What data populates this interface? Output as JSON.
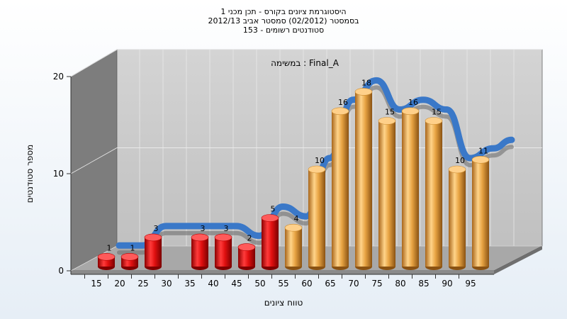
{
  "chart_data": {
    "type": "bar",
    "title_lines": [
      "היסטוגרמת ציונים בקורס - תכן מכני 1",
      "בסמסטר  (02/2012)  סמסטר אביב 2012/13",
      "סטודנטים רשומים - 153"
    ],
    "subtitle": "במשימה : Final_A",
    "xlabel": "טווח ציונים",
    "ylabel": "מספר סטודנטים",
    "x_ticks": [
      "15",
      "20",
      "25",
      "30",
      "35",
      "40",
      "45",
      "50",
      "55",
      "60",
      "65",
      "70",
      "75",
      "80",
      "85",
      "90",
      "95"
    ],
    "y_ticks": [
      "0",
      "10",
      "20"
    ],
    "ylim": [
      0,
      20
    ],
    "categories": [
      "15",
      "20",
      "25",
      "35",
      "40",
      "45",
      "50",
      "55",
      "60",
      "65",
      "70",
      "75",
      "80",
      "85",
      "90",
      "95"
    ],
    "values": [
      1,
      1,
      3,
      3,
      3,
      2,
      5,
      4,
      10,
      16,
      18,
      15,
      16,
      15,
      10,
      11
    ],
    "bar_colors": [
      "#e0141b",
      "#e0141b",
      "#e0141b",
      "#e0141b",
      "#e0141b",
      "#e0141b",
      "#e0141b",
      "#e8a443",
      "#e8a443",
      "#e8a443",
      "#e8a443",
      "#e8a443",
      "#e8a443",
      "#e8a443",
      "#e8a443",
      "#e8a443"
    ],
    "trend_color": "#3a78c8",
    "trend_shadow_color": "#707070",
    "legend": "none",
    "grid": true
  }
}
